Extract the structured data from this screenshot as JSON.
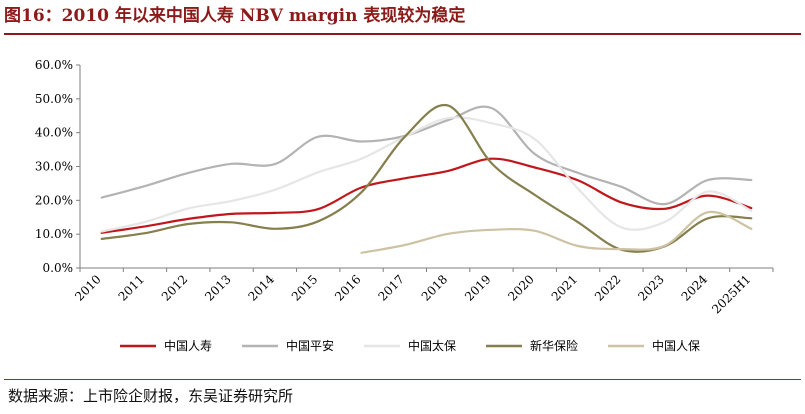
{
  "figure": {
    "title": "图16：2010 年以来中国人寿 NBV margin 表现较为稳定",
    "source": "数据来源：上市险企财报，东吴证券研究所"
  },
  "chart_data": {
    "type": "line",
    "categories": [
      "2010",
      "2011",
      "2012",
      "2013",
      "2014",
      "2015",
      "2016",
      "2017",
      "2018",
      "2019",
      "2020",
      "2021",
      "2022",
      "2023",
      "2024",
      "2025H1"
    ],
    "y_ticks": [
      "0.0%",
      "10.0%",
      "20.0%",
      "30.0%",
      "40.0%",
      "50.0%",
      "60.0%"
    ],
    "ylim": [
      0,
      60
    ],
    "grid": false,
    "legend_position": "bottom",
    "series": [
      {
        "name": "中国人寿",
        "color": "#c0171c",
        "values": [
          10.4,
          12.3,
          14.5,
          16.0,
          16.3,
          17.4,
          23.8,
          26.5,
          28.7,
          32.3,
          29.7,
          25.9,
          19.4,
          17.5,
          21.4,
          17.7
        ]
      },
      {
        "name": "中国平安",
        "color": "#b3b3b3",
        "values": [
          20.8,
          24.2,
          28.1,
          30.8,
          30.7,
          38.8,
          37.4,
          39.0,
          43.7,
          47.3,
          33.7,
          28.1,
          24.0,
          18.9,
          26.0,
          26.0
        ]
      },
      {
        "name": "中国太保",
        "color": "#e6e6e6",
        "values": [
          10.8,
          13.6,
          17.6,
          19.8,
          23.1,
          28.3,
          32.3,
          38.8,
          44.3,
          42.8,
          38.1,
          23.4,
          12.0,
          13.6,
          22.6,
          16.9
        ]
      },
      {
        "name": "新华保险",
        "color": "#857f4d",
        "values": [
          8.6,
          10.3,
          13.0,
          13.5,
          11.6,
          13.8,
          22.4,
          38.8,
          48.0,
          31.0,
          21.6,
          13.5,
          5.4,
          6.4,
          14.7,
          14.7
        ]
      },
      {
        "name": "中国人保",
        "color": "#cdc3a4",
        "values": [
          null,
          null,
          null,
          null,
          null,
          null,
          4.5,
          6.8,
          10.1,
          11.3,
          11.0,
          6.5,
          5.6,
          6.6,
          16.5,
          11.6
        ]
      }
    ]
  }
}
